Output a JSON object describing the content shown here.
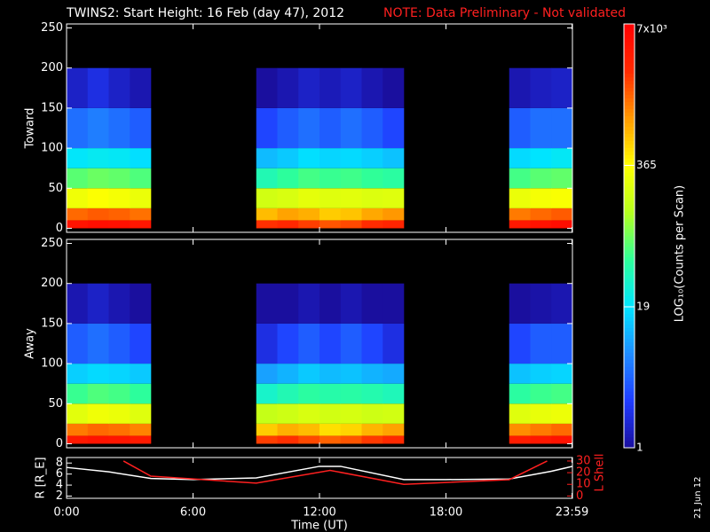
{
  "title": "TWINS2: Start Height: 16 Feb (day  47), 2012",
  "note": "NOTE: Data Preliminary - Not validated",
  "date_stamp": "21 Jun 12",
  "colorbar": {
    "label": "LOG₁₀(Counts per Scan)",
    "lim": [
      1,
      7000
    ],
    "log": true,
    "ticks": [
      1,
      19,
      365,
      {
        "value": 7000,
        "label": "7x10³"
      }
    ],
    "colormap": [
      "#1a0f9e",
      "#1f3cff",
      "#1f8cff",
      "#00e5ff",
      "#2dff9a",
      "#b4ff1e",
      "#ffff00",
      "#ff9a00",
      "#ff2a00",
      "#ff0000"
    ]
  },
  "chart_data": [
    {
      "type": "heatmap",
      "ylabel": "Toward",
      "xlim": [
        0,
        24
      ],
      "ylim": [
        -5,
        255
      ],
      "yticks": [
        0,
        50,
        100,
        150,
        200,
        250
      ],
      "x_bins": [
        0,
        1,
        2,
        3,
        4,
        5,
        6,
        7,
        8,
        9,
        10,
        11,
        12,
        13,
        14,
        15,
        16,
        17,
        18,
        19,
        20,
        21,
        22,
        23,
        24
      ],
      "y_bins": [
        0,
        10,
        25,
        50,
        75,
        100,
        150,
        200
      ],
      "z": [
        [
          4500,
          5000,
          4800,
          4200,
          null,
          null,
          null,
          null,
          null,
          2500,
          2800,
          2200,
          1800,
          2000,
          2600,
          3000,
          null,
          null,
          null,
          null,
          null,
          4000,
          4600,
          5200
        ],
        [
          1500,
          1700,
          1600,
          1400,
          null,
          null,
          null,
          null,
          null,
          700,
          900,
          800,
          600,
          650,
          850,
          1000,
          null,
          null,
          null,
          null,
          null,
          1300,
          1500,
          1700
        ],
        [
          300,
          350,
          320,
          280,
          null,
          null,
          null,
          null,
          null,
          200,
          220,
          260,
          240,
          250,
          230,
          240,
          null,
          null,
          null,
          null,
          null,
          280,
          320,
          340
        ],
        [
          70,
          80,
          75,
          65,
          null,
          null,
          null,
          null,
          null,
          40,
          50,
          60,
          55,
          58,
          52,
          48,
          null,
          null,
          null,
          null,
          null,
          60,
          70,
          75
        ],
        [
          20,
          22,
          21,
          18,
          null,
          null,
          null,
          null,
          null,
          12,
          14,
          18,
          16,
          17,
          15,
          13,
          null,
          null,
          null,
          null,
          null,
          17,
          19,
          21
        ],
        [
          5,
          6,
          5,
          4,
          null,
          null,
          null,
          null,
          null,
          3,
          4,
          5,
          4,
          5,
          4,
          3,
          null,
          null,
          null,
          null,
          null,
          4,
          5,
          5
        ],
        [
          1.5,
          2,
          1.5,
          1.2,
          null,
          null,
          null,
          null,
          null,
          1,
          1.2,
          1.5,
          1.3,
          1.5,
          1.2,
          1,
          null,
          null,
          null,
          null,
          null,
          1.2,
          1.4,
          1.5
        ]
      ]
    },
    {
      "type": "heatmap",
      "ylabel": "Away",
      "xlim": [
        0,
        24
      ],
      "ylim": [
        -5,
        255
      ],
      "yticks": [
        0,
        50,
        100,
        150,
        200,
        250
      ],
      "x_bins": [
        0,
        1,
        2,
        3,
        4,
        5,
        6,
        7,
        8,
        9,
        10,
        11,
        12,
        13,
        14,
        15,
        16,
        17,
        18,
        19,
        20,
        21,
        22,
        23,
        24
      ],
      "y_bins": [
        0,
        10,
        25,
        50,
        75,
        100,
        150,
        200
      ],
      "z": [
        [
          4000,
          4500,
          4300,
          3800,
          null,
          null,
          null,
          null,
          null,
          2200,
          2500,
          2000,
          1600,
          1800,
          2300,
          2700,
          null,
          null,
          null,
          null,
          null,
          3600,
          4100,
          4600
        ],
        [
          1300,
          1500,
          1400,
          1200,
          null,
          null,
          null,
          null,
          null,
          600,
          800,
          700,
          500,
          550,
          750,
          900,
          null,
          null,
          null,
          null,
          null,
          1100,
          1300,
          1500
        ],
        [
          250,
          300,
          280,
          240,
          null,
          null,
          null,
          null,
          null,
          170,
          190,
          220,
          200,
          210,
          190,
          200,
          null,
          null,
          null,
          null,
          null,
          240,
          270,
          290
        ],
        [
          55,
          65,
          60,
          50,
          null,
          null,
          null,
          null,
          null,
          32,
          40,
          48,
          44,
          46,
          42,
          38,
          null,
          null,
          null,
          null,
          null,
          48,
          56,
          60
        ],
        [
          15,
          17,
          16,
          14,
          null,
          null,
          null,
          null,
          null,
          9,
          11,
          14,
          12,
          13,
          11,
          10,
          null,
          null,
          null,
          null,
          null,
          13,
          15,
          16
        ],
        [
          4,
          5,
          4,
          3,
          null,
          null,
          null,
          null,
          null,
          2,
          3,
          4,
          3,
          4,
          3,
          2,
          null,
          null,
          null,
          null,
          null,
          3,
          4,
          4
        ],
        [
          1.2,
          1.5,
          1.2,
          1,
          null,
          null,
          null,
          null,
          null,
          1,
          1,
          1.2,
          1,
          1.2,
          1,
          1,
          null,
          null,
          null,
          null,
          null,
          1,
          1.1,
          1.2
        ]
      ]
    },
    {
      "type": "line",
      "ylabel": "R [R_E]",
      "y2label": "L Shell",
      "xlabel": "Time (UT)",
      "xlim": [
        0,
        24
      ],
      "ylim": [
        1.6,
        9
      ],
      "y2lim": [
        -2,
        33
      ],
      "xticks": [
        {
          "value": 0,
          "label": "0:00"
        },
        {
          "value": 6,
          "label": "6:00"
        },
        {
          "value": 12,
          "label": "12:00"
        },
        {
          "value": 18,
          "label": "18:00"
        },
        {
          "value": 23.98,
          "label": "23:59"
        }
      ],
      "yticks": [
        2,
        4,
        6,
        8
      ],
      "y2ticks": [
        0,
        10,
        20,
        30
      ],
      "series": [
        {
          "color": "#ffffff",
          "x": [
            0,
            2,
            4,
            6,
            9,
            12,
            13,
            16,
            18,
            21,
            23,
            24
          ],
          "values": [
            7.2,
            6.4,
            5.2,
            5.0,
            5.3,
            7.4,
            7.4,
            5.0,
            5.0,
            5.1,
            6.5,
            7.4
          ]
        },
        {
          "color": "#ff2020",
          "axis": "y2",
          "x": [
            2.7,
            4,
            9,
            12.5,
            16,
            21,
            22.8
          ],
          "values": [
            30,
            17,
            11,
            22,
            10,
            14,
            30
          ]
        }
      ]
    }
  ]
}
